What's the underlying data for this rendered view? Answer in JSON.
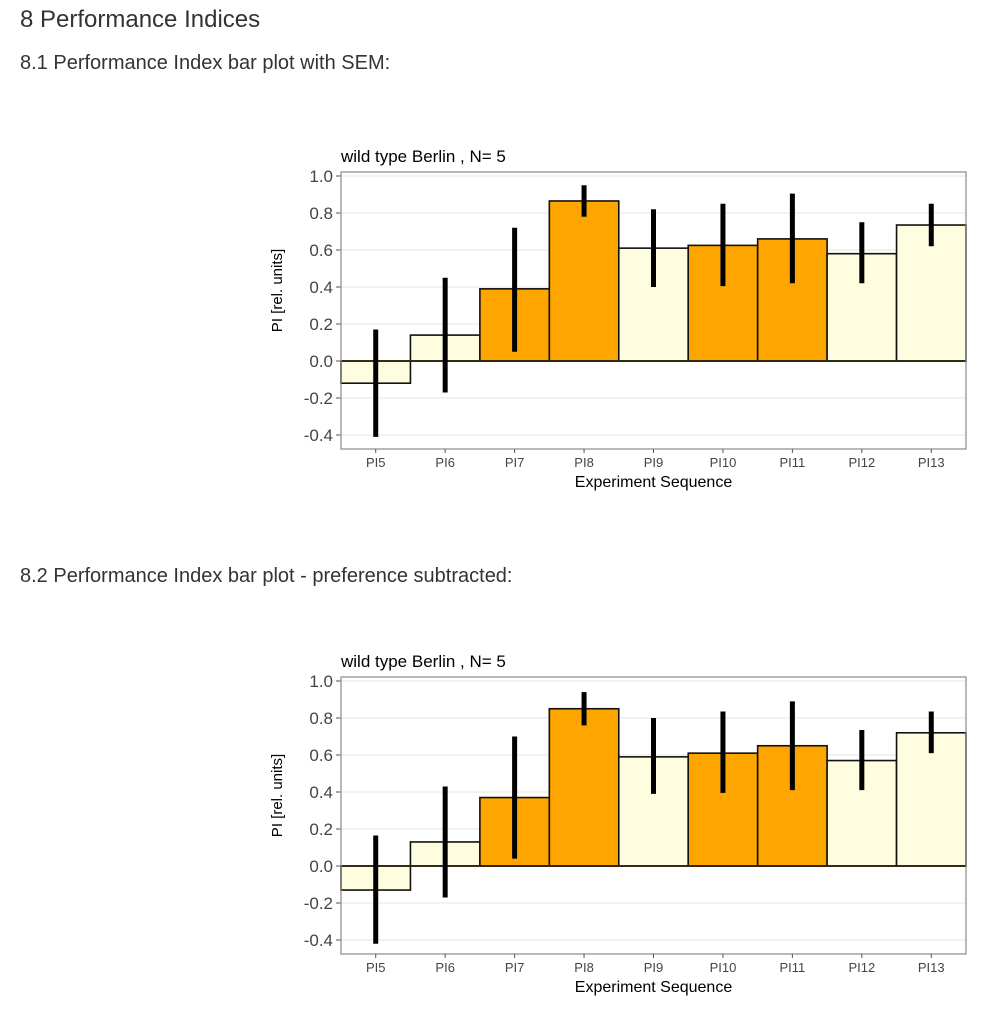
{
  "page": {
    "section_title": "8 Performance Indices",
    "subsections": [
      {
        "title": "8.1 Performance Index bar plot with SEM:"
      },
      {
        "title": "8.2 Performance Index bar plot - preference subtracted:"
      }
    ]
  },
  "colors": {
    "bar_dark": "#FFA500",
    "bar_light": "#FFFDE0",
    "bar_outline": "#111111",
    "errorbar": "#000000",
    "zero_line": "#B8860B",
    "grid": "#E5E5E5",
    "panel_border": "#8A8A8A"
  },
  "chart_data": [
    {
      "type": "bar",
      "title": "wild type Berlin , N= 5",
      "xlabel": "Experiment Sequence",
      "ylabel": "PI [rel. units]",
      "ylim": [
        -0.45,
        1.0
      ],
      "yticks": [
        "1.0",
        "0.8",
        "0.6",
        "0.4",
        "0.2",
        "0.0",
        "-0.2",
        "-0.4"
      ],
      "ytick_values": [
        1.0,
        0.8,
        0.6,
        0.4,
        0.2,
        0.0,
        -0.2,
        -0.4
      ],
      "grid": true,
      "categories": [
        "PI5",
        "PI6",
        "PI7",
        "PI8",
        "PI9",
        "PI10",
        "PI11",
        "PI12",
        "PI13"
      ],
      "values": [
        -0.12,
        0.14,
        0.39,
        0.865,
        0.61,
        0.625,
        0.66,
        0.58,
        0.735
      ],
      "error_low": [
        -0.41,
        -0.17,
        0.05,
        0.78,
        0.4,
        0.405,
        0.42,
        0.42,
        0.62
      ],
      "error_high": [
        0.17,
        0.45,
        0.72,
        0.95,
        0.82,
        0.85,
        0.905,
        0.75,
        0.85
      ],
      "fill": [
        "light",
        "light",
        "dark",
        "dark",
        "light",
        "dark",
        "dark",
        "light",
        "light"
      ]
    },
    {
      "type": "bar",
      "title": "wild type Berlin , N= 5",
      "xlabel": "Experiment Sequence",
      "ylabel": "PI [rel. units]",
      "ylim": [
        -0.45,
        1.0
      ],
      "yticks": [
        "1.0",
        "0.8",
        "0.6",
        "0.4",
        "0.2",
        "0.0",
        "-0.2",
        "-0.4"
      ],
      "ytick_values": [
        1.0,
        0.8,
        0.6,
        0.4,
        0.2,
        0.0,
        -0.2,
        -0.4
      ],
      "grid": true,
      "categories": [
        "PI5",
        "PI6",
        "PI7",
        "PI8",
        "PI9",
        "PI10",
        "PI11",
        "PI12",
        "PI13"
      ],
      "values": [
        -0.13,
        0.13,
        0.37,
        0.85,
        0.59,
        0.61,
        0.65,
        0.57,
        0.72
      ],
      "error_low": [
        -0.42,
        -0.17,
        0.04,
        0.76,
        0.39,
        0.395,
        0.41,
        0.41,
        0.61
      ],
      "error_high": [
        0.165,
        0.43,
        0.7,
        0.94,
        0.8,
        0.835,
        0.89,
        0.735,
        0.835
      ],
      "fill": [
        "light",
        "light",
        "dark",
        "dark",
        "light",
        "dark",
        "dark",
        "light",
        "light"
      ]
    }
  ]
}
